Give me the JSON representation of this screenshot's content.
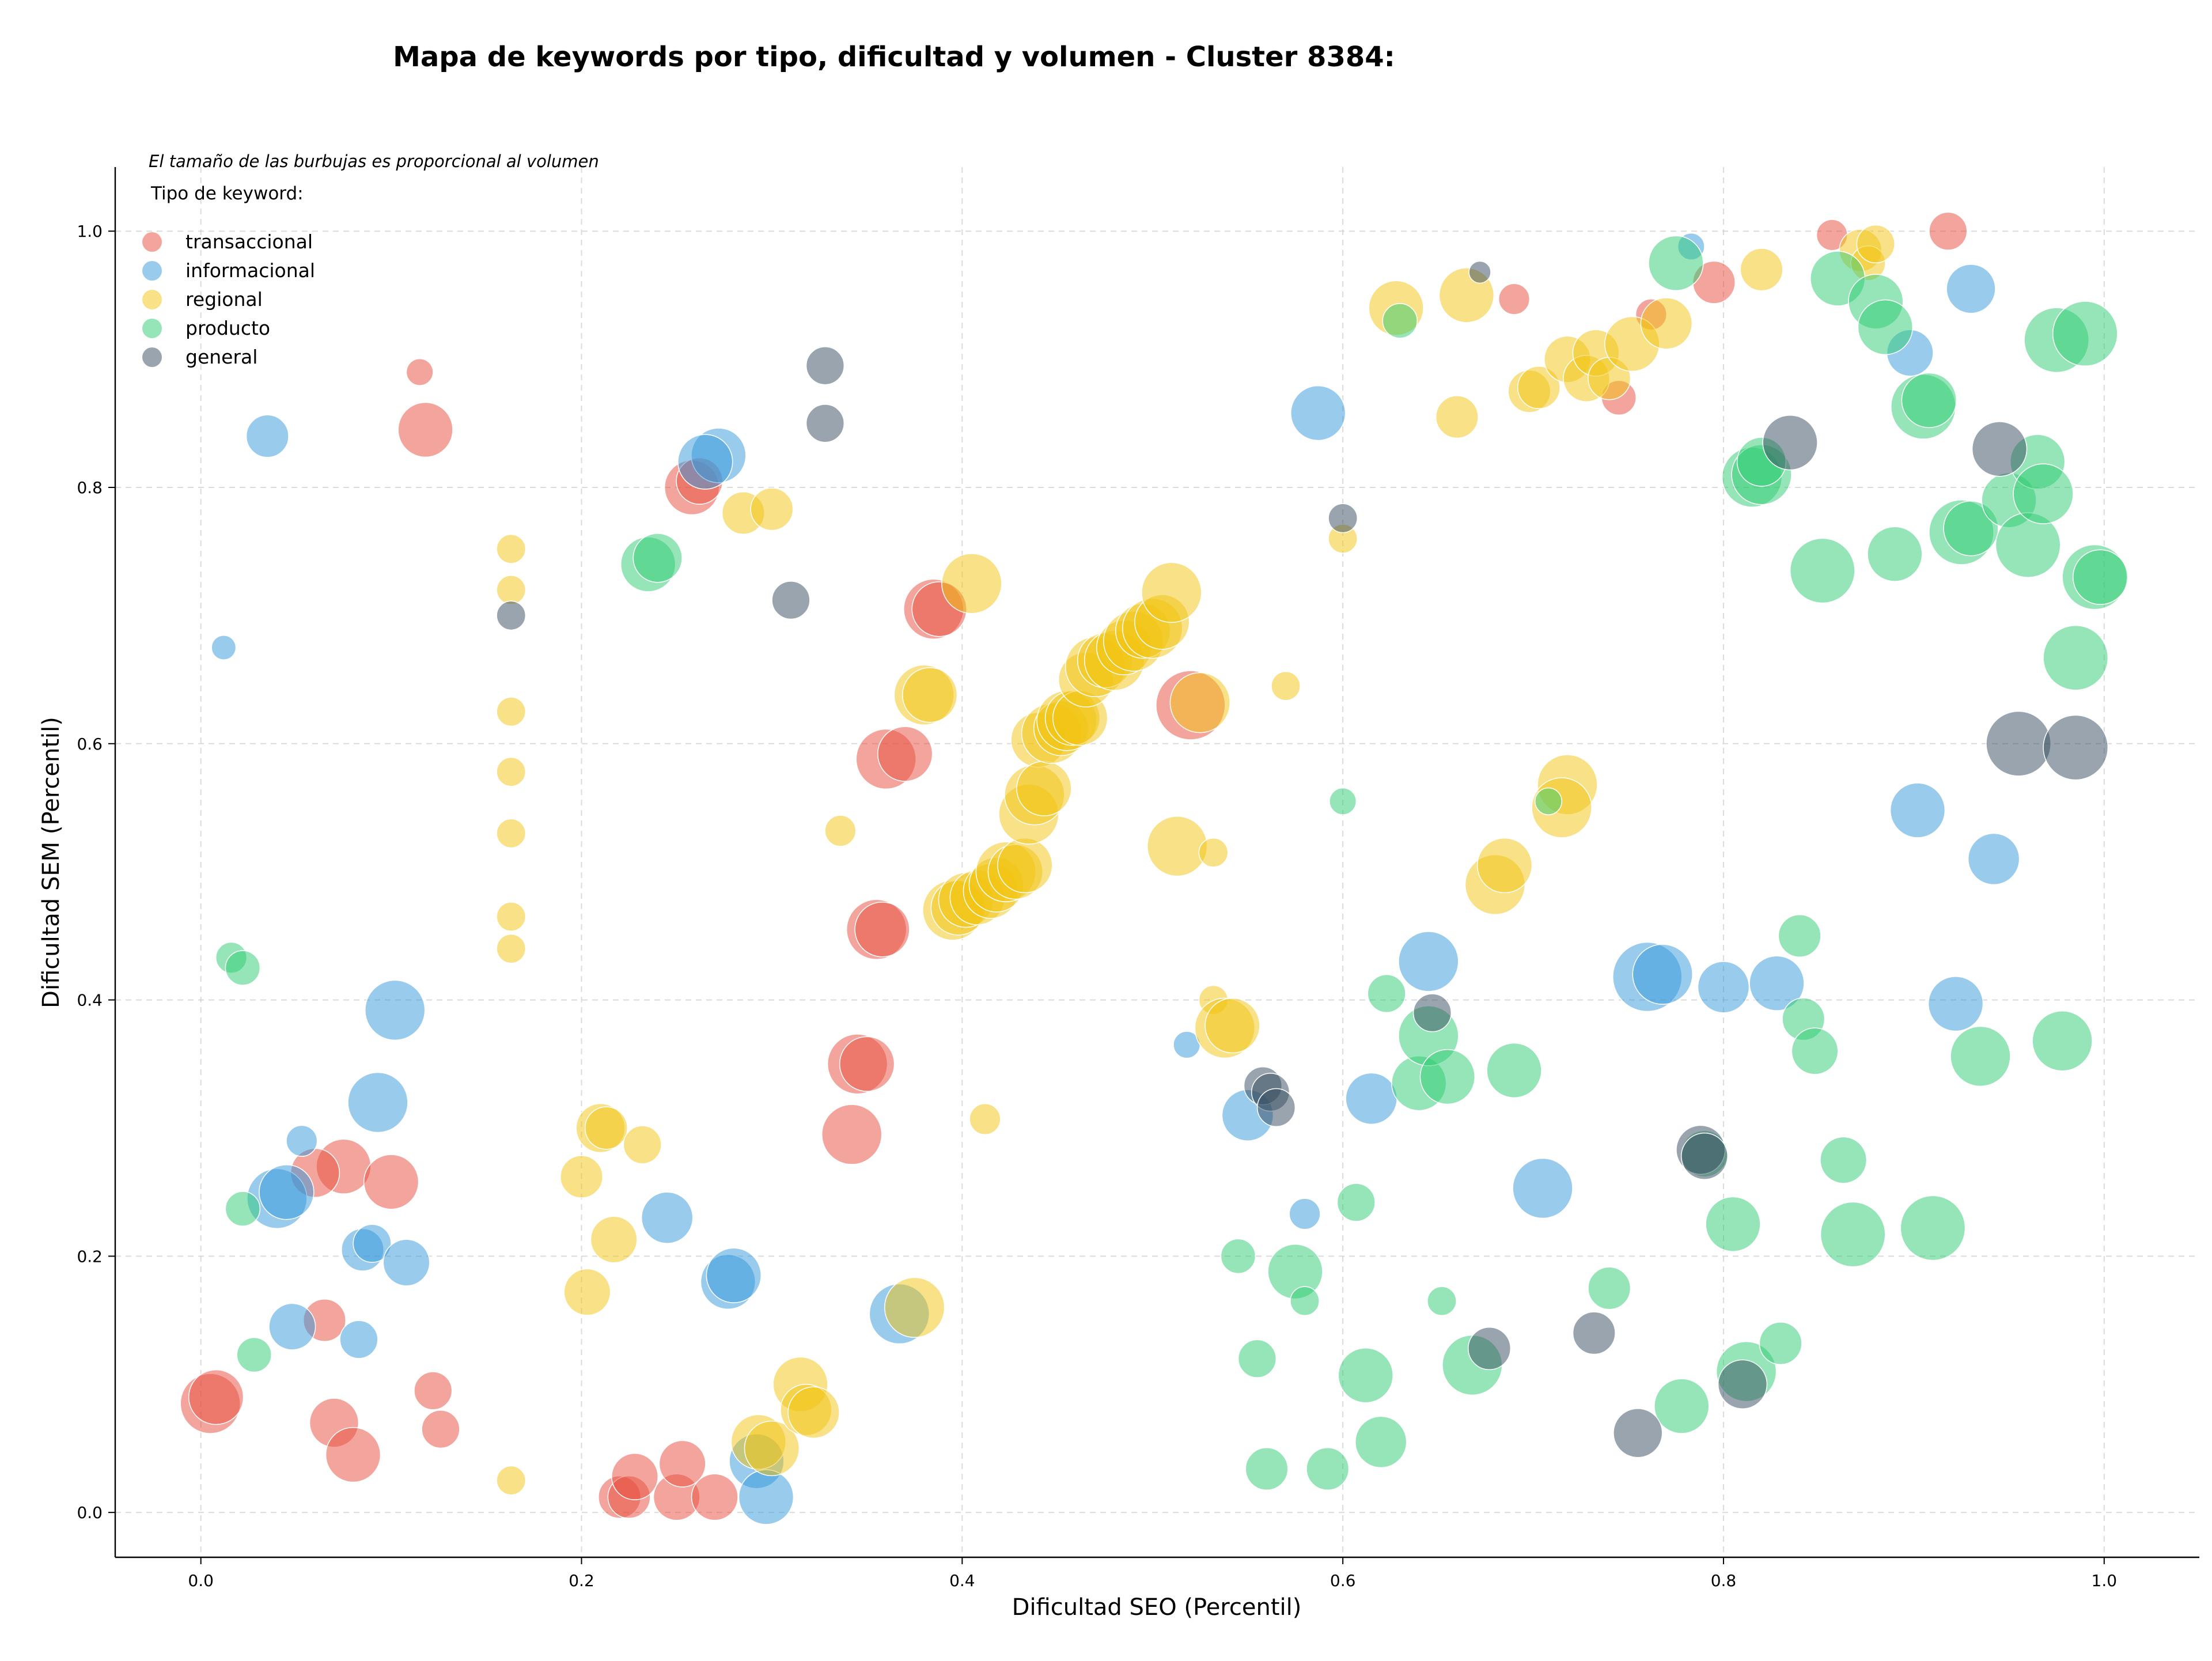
{
  "chart_data": {
    "type": "scatter",
    "title": "Mapa de keywords por tipo, dificultad y volumen - Cluster 8384:",
    "xlabel": "Dificultad SEO (Percentil)",
    "ylabel": "Dificultad SEM (Percentil)",
    "annotation": "El tamaño de las burbujas es proporcional al volumen",
    "xlim": [
      -0.045,
      1.05
    ],
    "ylim": [
      -0.035,
      1.05
    ],
    "xticks": [
      "0.0",
      "0.2",
      "0.4",
      "0.6",
      "0.8",
      "1.0"
    ],
    "yticks": [
      "0.0",
      "0.2",
      "0.4",
      "0.6",
      "0.8",
      "1.0"
    ],
    "grid": true,
    "legend": {
      "title": "Tipo de keyword:",
      "position": "top-left"
    },
    "size_encoding": "volume",
    "series": [
      {
        "name": "transaccional",
        "color": "#e74c3c",
        "points": [
          [
            0.005,
            0.085,
            3
          ],
          [
            0.008,
            0.09,
            2.5
          ],
          [
            0.065,
            0.15,
            1.5
          ],
          [
            0.07,
            0.07,
            2
          ],
          [
            0.075,
            0.27,
            2.5
          ],
          [
            0.08,
            0.045,
            2.5
          ],
          [
            0.06,
            0.265,
            2
          ],
          [
            0.1,
            0.258,
            2.5
          ],
          [
            0.115,
            0.89,
            0.6
          ],
          [
            0.118,
            0.845,
            2.5
          ],
          [
            0.122,
            0.095,
            1.2
          ],
          [
            0.126,
            0.065,
            1.2
          ],
          [
            0.22,
            0.012,
            1.5
          ],
          [
            0.225,
            0.012,
            1.5
          ],
          [
            0.228,
            0.028,
            1.8
          ],
          [
            0.25,
            0.012,
            1.8
          ],
          [
            0.253,
            0.038,
            1.8
          ],
          [
            0.27,
            0.012,
            1.8
          ],
          [
            0.258,
            0.8,
            2.5
          ],
          [
            0.262,
            0.805,
            1.8
          ],
          [
            0.342,
            0.295,
            3
          ],
          [
            0.345,
            0.35,
            3
          ],
          [
            0.35,
            0.35,
            2.5
          ],
          [
            0.355,
            0.455,
            3
          ],
          [
            0.358,
            0.455,
            2.5
          ],
          [
            0.36,
            0.588,
            3
          ],
          [
            0.37,
            0.592,
            2.5
          ],
          [
            0.385,
            0.705,
            3
          ],
          [
            0.388,
            0.705,
            2.5
          ],
          [
            0.52,
            0.63,
            4
          ],
          [
            0.69,
            0.947,
            0.8
          ],
          [
            0.745,
            0.87,
            1
          ],
          [
            0.762,
            0.935,
            0.8
          ],
          [
            0.795,
            0.96,
            1.5
          ],
          [
            0.857,
            0.997,
            0.8
          ],
          [
            0.918,
            1.0,
            1.2
          ]
        ]
      },
      {
        "name": "informacional",
        "color": "#3498db",
        "points": [
          [
            0.012,
            0.675,
            0.5
          ],
          [
            0.035,
            0.84,
            1.5
          ],
          [
            0.04,
            0.245,
            3
          ],
          [
            0.045,
            0.25,
            2.5
          ],
          [
            0.048,
            0.145,
            1.8
          ],
          [
            0.053,
            0.29,
            0.8
          ],
          [
            0.085,
            0.205,
            1.5
          ],
          [
            0.09,
            0.21,
            1.2
          ],
          [
            0.083,
            0.135,
            1.2
          ],
          [
            0.093,
            0.32,
            3
          ],
          [
            0.102,
            0.392,
            3
          ],
          [
            0.108,
            0.195,
            1.8
          ],
          [
            0.245,
            0.23,
            2.2
          ],
          [
            0.272,
            0.825,
            2.5
          ],
          [
            0.265,
            0.82,
            2.5
          ],
          [
            0.277,
            0.18,
            2.5
          ],
          [
            0.28,
            0.185,
            2.5
          ],
          [
            0.292,
            0.04,
            2.5
          ],
          [
            0.297,
            0.012,
            2.5
          ],
          [
            0.367,
            0.155,
            3
          ],
          [
            0.518,
            0.365,
            0.6
          ],
          [
            0.55,
            0.31,
            2.2
          ],
          [
            0.58,
            0.233,
            0.8
          ],
          [
            0.587,
            0.858,
            2.5
          ],
          [
            0.615,
            0.323,
            2.2
          ],
          [
            0.645,
            0.43,
            3
          ],
          [
            0.705,
            0.253,
            3
          ],
          [
            0.76,
            0.418,
            4
          ],
          [
            0.768,
            0.42,
            3
          ],
          [
            0.783,
            0.988,
            0.6
          ],
          [
            0.8,
            0.41,
            2.2
          ],
          [
            0.828,
            0.413,
            2.5
          ],
          [
            0.898,
            0.905,
            1.8
          ],
          [
            0.902,
            0.548,
            2.5
          ],
          [
            0.922,
            0.397,
            2.5
          ],
          [
            0.93,
            0.955,
            2
          ],
          [
            0.942,
            0.51,
            2.2
          ]
        ]
      },
      {
        "name": "regional",
        "color": "#f1c40f",
        "points": [
          [
            0.163,
            0.752,
            0.7
          ],
          [
            0.163,
            0.72,
            0.7
          ],
          [
            0.163,
            0.625,
            0.7
          ],
          [
            0.163,
            0.578,
            0.7
          ],
          [
            0.163,
            0.53,
            0.7
          ],
          [
            0.163,
            0.465,
            0.7
          ],
          [
            0.163,
            0.44,
            0.7
          ],
          [
            0.163,
            0.025,
            0.7
          ],
          [
            0.2,
            0.262,
            1.5
          ],
          [
            0.203,
            0.172,
            1.8
          ],
          [
            0.21,
            0.3,
            2
          ],
          [
            0.213,
            0.3,
            1.5
          ],
          [
            0.217,
            0.213,
            1.8
          ],
          [
            0.232,
            0.287,
            1.2
          ],
          [
            0.285,
            0.78,
            1.5
          ],
          [
            0.3,
            0.783,
            1.5
          ],
          [
            0.293,
            0.055,
            2.5
          ],
          [
            0.3,
            0.05,
            2.5
          ],
          [
            0.315,
            0.1,
            2.5
          ],
          [
            0.318,
            0.08,
            2.2
          ],
          [
            0.322,
            0.078,
            2.2
          ],
          [
            0.336,
            0.532,
            0.8
          ],
          [
            0.375,
            0.16,
            3
          ],
          [
            0.38,
            0.638,
            3
          ],
          [
            0.383,
            0.638,
            2.5
          ],
          [
            0.395,
            0.47,
            3
          ],
          [
            0.398,
            0.472,
            2.5
          ],
          [
            0.402,
            0.478,
            2.5
          ],
          [
            0.405,
            0.725,
            3
          ],
          [
            0.408,
            0.48,
            2.5
          ],
          [
            0.412,
            0.307,
            0.8
          ],
          [
            0.415,
            0.485,
            2.5
          ],
          [
            0.418,
            0.49,
            2.5
          ],
          [
            0.423,
            0.5,
            3
          ],
          [
            0.428,
            0.5,
            2.5
          ],
          [
            0.433,
            0.505,
            2.5
          ],
          [
            0.435,
            0.545,
            3
          ],
          [
            0.438,
            0.56,
            3
          ],
          [
            0.44,
            0.603,
            2.5
          ],
          [
            0.443,
            0.565,
            2.5
          ],
          [
            0.447,
            0.608,
            3
          ],
          [
            0.452,
            0.612,
            2.5
          ],
          [
            0.455,
            0.618,
            3
          ],
          [
            0.458,
            0.62,
            2.5
          ],
          [
            0.462,
            0.62,
            2.5
          ],
          [
            0.465,
            0.65,
            2.5
          ],
          [
            0.47,
            0.66,
            3
          ],
          [
            0.475,
            0.665,
            2.5
          ],
          [
            0.48,
            0.665,
            3
          ],
          [
            0.485,
            0.675,
            2.5
          ],
          [
            0.49,
            0.68,
            3
          ],
          [
            0.495,
            0.688,
            2.5
          ],
          [
            0.5,
            0.69,
            3
          ],
          [
            0.505,
            0.695,
            2.5
          ],
          [
            0.51,
            0.718,
            3
          ],
          [
            0.513,
            0.52,
            3
          ],
          [
            0.525,
            0.632,
            3
          ],
          [
            0.532,
            0.515,
            0.7
          ],
          [
            0.532,
            0.4,
            0.7
          ],
          [
            0.538,
            0.378,
            3
          ],
          [
            0.542,
            0.38,
            2.5
          ],
          [
            0.57,
            0.645,
            0.7
          ],
          [
            0.6,
            0.76,
            0.7
          ],
          [
            0.628,
            0.94,
            2.5
          ],
          [
            0.66,
            0.855,
            1.5
          ],
          [
            0.665,
            0.95,
            2.5
          ],
          [
            0.698,
            0.875,
            1.5
          ],
          [
            0.703,
            0.878,
            1.5
          ],
          [
            0.718,
            0.568,
            3
          ],
          [
            0.715,
            0.55,
            3
          ],
          [
            0.68,
            0.49,
            3
          ],
          [
            0.685,
            0.505,
            2.5
          ],
          [
            0.718,
            0.9,
            1.8
          ],
          [
            0.728,
            0.885,
            1.8
          ],
          [
            0.733,
            0.905,
            1.8
          ],
          [
            0.74,
            0.885,
            1.5
          ],
          [
            0.752,
            0.912,
            2.5
          ],
          [
            0.77,
            0.928,
            2.2
          ],
          [
            0.872,
            0.985,
            1.5
          ],
          [
            0.876,
            0.975,
            1
          ],
          [
            0.88,
            0.99,
            1.2
          ],
          [
            0.82,
            0.97,
            1.5
          ]
        ]
      },
      {
        "name": "producto",
        "color": "#2ecc71",
        "points": [
          [
            0.016,
            0.433,
            0.8
          ],
          [
            0.022,
            0.425,
            1
          ],
          [
            0.022,
            0.237,
            1
          ],
          [
            0.028,
            0.123,
            1
          ],
          [
            0.235,
            0.74,
            2.5
          ],
          [
            0.24,
            0.745,
            2
          ],
          [
            0.545,
            0.2,
            1
          ],
          [
            0.555,
            0.12,
            1.2
          ],
          [
            0.575,
            0.188,
            2.5
          ],
          [
            0.58,
            0.165,
            0.7
          ],
          [
            0.6,
            0.555,
            0.6
          ],
          [
            0.607,
            0.242,
            1.2
          ],
          [
            0.612,
            0.107,
            2.5
          ],
          [
            0.62,
            0.055,
            2.2
          ],
          [
            0.623,
            0.405,
            1.2
          ],
          [
            0.63,
            0.93,
            1
          ],
          [
            0.64,
            0.335,
            2.5
          ],
          [
            0.645,
            0.372,
            3
          ],
          [
            0.652,
            0.165,
            0.7
          ],
          [
            0.655,
            0.34,
            2.5
          ],
          [
            0.668,
            0.115,
            3
          ],
          [
            0.69,
            0.345,
            2.5
          ],
          [
            0.708,
            0.555,
            0.6
          ],
          [
            0.74,
            0.175,
            1.5
          ],
          [
            0.775,
            0.975,
            2.5
          ],
          [
            0.778,
            0.083,
            2.5
          ],
          [
            0.79,
            0.28,
            1.8
          ],
          [
            0.805,
            0.225,
            2.5
          ],
          [
            0.812,
            0.11,
            3
          ],
          [
            0.815,
            0.808,
            3
          ],
          [
            0.82,
            0.81,
            3
          ],
          [
            0.82,
            0.82,
            2
          ],
          [
            0.83,
            0.132,
            1.5
          ],
          [
            0.84,
            0.45,
            1.5
          ],
          [
            0.842,
            0.385,
            1.5
          ],
          [
            0.848,
            0.36,
            1.8
          ],
          [
            0.852,
            0.735,
            3.5
          ],
          [
            0.86,
            0.963,
            2.5
          ],
          [
            0.863,
            0.275,
            1.8
          ],
          [
            0.868,
            0.217,
            3.5
          ],
          [
            0.88,
            0.945,
            2.5
          ],
          [
            0.885,
            0.925,
            2.5
          ],
          [
            0.89,
            0.748,
            2.5
          ],
          [
            0.905,
            0.863,
            3.5
          ],
          [
            0.908,
            0.868,
            2.5
          ],
          [
            0.91,
            0.222,
            3.5
          ],
          [
            0.925,
            0.765,
            3.5
          ],
          [
            0.93,
            0.768,
            2.5
          ],
          [
            0.935,
            0.356,
            3
          ],
          [
            0.95,
            0.79,
            2.5
          ],
          [
            0.96,
            0.755,
            3.5
          ],
          [
            0.965,
            0.82,
            2.5
          ],
          [
            0.968,
            0.795,
            3
          ],
          [
            0.975,
            0.915,
            3.5
          ],
          [
            0.978,
            0.368,
            3
          ],
          [
            0.985,
            0.667,
            3.5
          ],
          [
            0.99,
            0.92,
            3.5
          ],
          [
            0.995,
            0.73,
            3.5
          ],
          [
            0.998,
            0.73,
            2.5
          ],
          [
            0.56,
            0.034,
            1.5
          ],
          [
            0.592,
            0.034,
            1.5
          ]
        ]
      },
      {
        "name": "general",
        "color": "#34495e",
        "points": [
          [
            0.163,
            0.7,
            0.7
          ],
          [
            0.31,
            0.712,
            1.2
          ],
          [
            0.328,
            0.895,
            1.2
          ],
          [
            0.328,
            0.85,
            1.2
          ],
          [
            0.558,
            0.333,
            1.2
          ],
          [
            0.562,
            0.328,
            1.2
          ],
          [
            0.565,
            0.316,
            1.2
          ],
          [
            0.6,
            0.776,
            0.7
          ],
          [
            0.647,
            0.39,
            1.2
          ],
          [
            0.672,
            0.968,
            0.4
          ],
          [
            0.677,
            0.128,
            1.5
          ],
          [
            0.732,
            0.14,
            1.5
          ],
          [
            0.755,
            0.062,
            2
          ],
          [
            0.788,
            0.283,
            2
          ],
          [
            0.79,
            0.278,
            1.8
          ],
          [
            0.81,
            0.1,
            2
          ],
          [
            0.835,
            0.835,
            2.5
          ],
          [
            0.945,
            0.83,
            2.5
          ],
          [
            0.955,
            0.6,
            3.5
          ],
          [
            0.985,
            0.597,
            3.5
          ]
        ]
      }
    ]
  }
}
